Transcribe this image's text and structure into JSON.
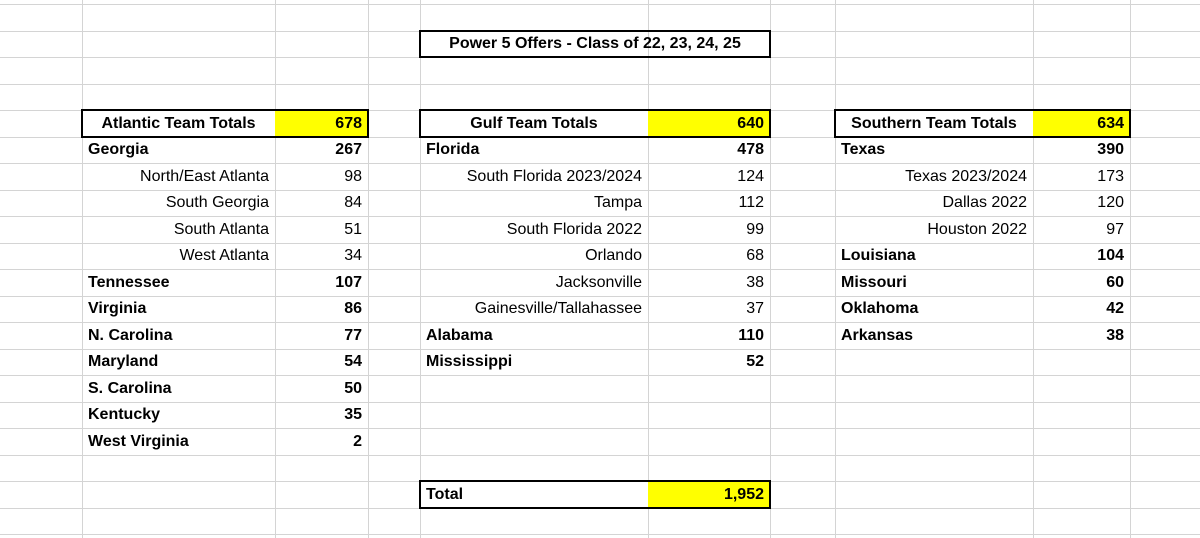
{
  "title": "Power 5 Offers - Class of 22, 23, 24, 25",
  "sections": [
    {
      "name": "Atlantic Team Totals",
      "total": 678,
      "regions": [
        {
          "name": "Georgia",
          "value": 267,
          "subregions": [
            {
              "name": "North/East Atlanta",
              "value": 98
            },
            {
              "name": "South Georgia",
              "value": 84
            },
            {
              "name": "South Atlanta",
              "value": 51
            },
            {
              "name": "West Atlanta",
              "value": 34
            }
          ]
        },
        {
          "name": "Tennessee",
          "value": 107,
          "subregions": []
        },
        {
          "name": "Virginia",
          "value": 86,
          "subregions": []
        },
        {
          "name": "N. Carolina",
          "value": 77,
          "subregions": []
        },
        {
          "name": "Maryland",
          "value": 54,
          "subregions": []
        },
        {
          "name": "S. Carolina",
          "value": 50,
          "subregions": []
        },
        {
          "name": "Kentucky",
          "value": 35,
          "subregions": []
        },
        {
          "name": "West Virginia",
          "value": 2,
          "subregions": []
        }
      ]
    },
    {
      "name": "Gulf Team Totals",
      "total": 640,
      "regions": [
        {
          "name": "Florida",
          "value": 478,
          "subregions": [
            {
              "name": "South Florida 2023/2024",
              "value": 124
            },
            {
              "name": "Tampa",
              "value": 112
            },
            {
              "name": "South Florida 2022",
              "value": 99
            },
            {
              "name": "Orlando",
              "value": 68
            },
            {
              "name": "Jacksonville",
              "value": 38
            },
            {
              "name": "Gainesville/Tallahassee",
              "value": 37
            }
          ]
        },
        {
          "name": "Alabama",
          "value": 110,
          "subregions": []
        },
        {
          "name": "Mississippi",
          "value": 52,
          "subregions": []
        }
      ]
    },
    {
      "name": "Southern Team Totals",
      "total": 634,
      "regions": [
        {
          "name": "Texas",
          "value": 390,
          "subregions": [
            {
              "name": "Texas 2023/2024",
              "value": 173
            },
            {
              "name": "Dallas 2022",
              "value": 120
            },
            {
              "name": "Houston 2022",
              "value": 97
            }
          ]
        },
        {
          "name": "Louisiana",
          "value": 104,
          "subregions": []
        },
        {
          "name": "Missouri",
          "value": 60,
          "subregions": []
        },
        {
          "name": "Oklahoma",
          "value": 42,
          "subregions": []
        },
        {
          "name": "Arkansas",
          "value": 38,
          "subregions": []
        }
      ]
    }
  ],
  "grand_total": {
    "label": "Total",
    "value": {
      "value": 1952,
      "label": "1,952"
    }
  }
}
